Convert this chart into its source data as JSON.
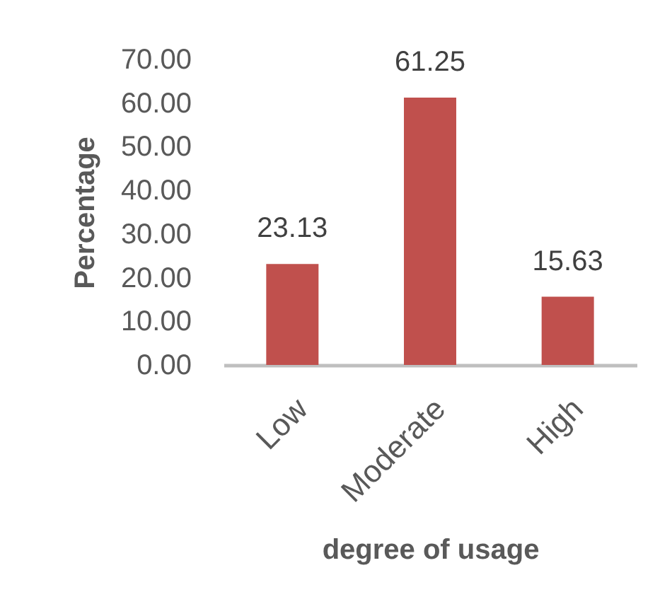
{
  "chart_data": {
    "type": "bar",
    "xlabel": "degree  of usage",
    "ylabel": "Percentage",
    "categories": [
      "Low",
      "Moderate",
      "High"
    ],
    "values": [
      23.13,
      61.25,
      15.63
    ],
    "color": "#c0504d",
    "ylim": [
      0,
      70
    ],
    "yticks": [
      {
        "value": 0,
        "label": "0.00"
      },
      {
        "value": 10,
        "label": "10.00"
      },
      {
        "value": 20,
        "label": "20.00"
      },
      {
        "value": 30,
        "label": "30.00"
      },
      {
        "value": 40,
        "label": "40.00"
      },
      {
        "value": 50,
        "label": "50.00"
      },
      {
        "value": 60,
        "label": "60.00"
      },
      {
        "value": 70,
        "label": "70.00"
      }
    ],
    "data_labels": true
  }
}
